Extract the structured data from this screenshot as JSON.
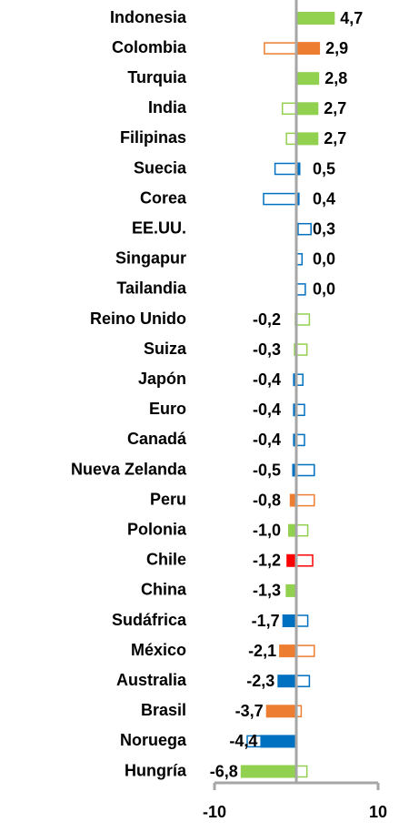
{
  "chart_data": {
    "type": "hbar",
    "categories": [
      "Indonesia",
      "Colombia",
      "Turquia",
      "India",
      "Filipinas",
      "Suecia",
      "Corea",
      "EE.UU.",
      "Singapur",
      "Tailandia",
      "Reino Unido",
      "Suiza",
      "Japón",
      "Euro",
      "Canadá",
      "Nueva Zelanda",
      "Peru",
      "Polonia",
      "Chile",
      "China",
      "Sudáfrica",
      "México",
      "Australia",
      "Brasil",
      "Noruega",
      "Hungría"
    ],
    "values": [
      4.7,
      2.9,
      2.8,
      2.7,
      2.7,
      0.5,
      0.4,
      0.3,
      0.0,
      0.0,
      -0.2,
      -0.3,
      -0.4,
      -0.4,
      -0.4,
      -0.5,
      -0.8,
      -1.0,
      -1.2,
      -1.3,
      -1.7,
      -2.1,
      -2.3,
      -3.7,
      -4.4,
      -6.8
    ],
    "value_labels": [
      "4,7",
      "2,9",
      "2,8",
      "2,7",
      "2,7",
      "0,5",
      "0,4",
      "0,3",
      "0,0",
      "0,0",
      "-0,2",
      "-0,3",
      "-0,4",
      "-0,4",
      "-0,4",
      "-0,5",
      "-0,8",
      "-1,0",
      "-1,2",
      "-1,3",
      "-1,7",
      "-2,1",
      "-2,3",
      "-3,7",
      "-4,4",
      "-6,8"
    ],
    "outline_values": [
      null,
      -3.9,
      null,
      -1.7,
      -1.2,
      -2.6,
      -4.0,
      1.8,
      0.7,
      1.1,
      1.6,
      1.3,
      0.8,
      1.0,
      1.0,
      2.2,
      2.2,
      1.4,
      2.0,
      null,
      1.4,
      2.2,
      1.6,
      0.6,
      -6.0,
      1.3
    ],
    "colors": [
      "#92d050",
      "#ed7d31",
      "#92d050",
      "#92d050",
      "#92d050",
      "#0070c0",
      "#0070c0",
      "#0070c0",
      "#0070c0",
      "#0070c0",
      "#92d050",
      "#92d050",
      "#0070c0",
      "#0070c0",
      "#0070c0",
      "#0070c0",
      "#ed7d31",
      "#92d050",
      "#ff0000",
      "#92d050",
      "#0070c0",
      "#ed7d31",
      "#0070c0",
      "#ed7d31",
      "#0070c0",
      "#92d050"
    ],
    "xlim": [
      -10,
      10
    ],
    "xticks": [
      -10,
      10
    ]
  }
}
